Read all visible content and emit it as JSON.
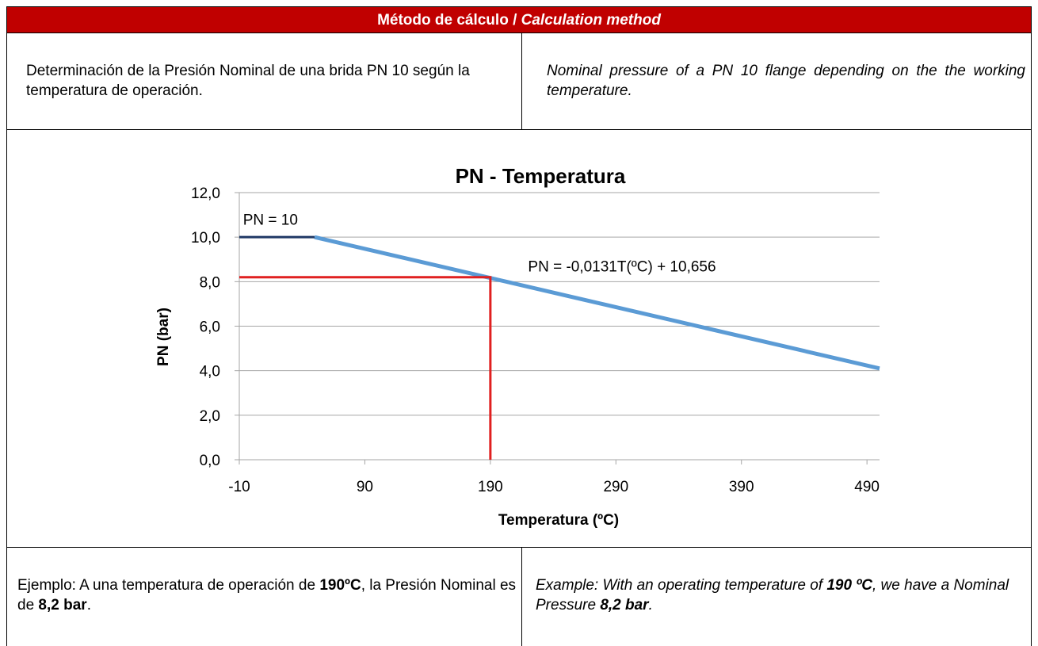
{
  "header": {
    "title": "Método de cálculo / ",
    "title_italic": "Calculation method"
  },
  "description": {
    "es": "Determinación de la Presión Nominal de una brida PN 10 según la temperatura de operación.",
    "en": "Nominal pressure of a PN 10 flange depending on the the working temperature."
  },
  "chart_data": {
    "type": "line",
    "title": "PN - Temperatura",
    "x_label": "Temperatura (ºC)",
    "y_label": "PN (bar)",
    "xlim": [
      -10,
      500
    ],
    "xticks": [
      -10,
      90,
      190,
      290,
      390,
      490
    ],
    "ylim": [
      0,
      12
    ],
    "yticks": [
      {
        "value": 0,
        "label": "0,0"
      },
      {
        "value": 2,
        "label": "2,0"
      },
      {
        "value": 4,
        "label": "4,0"
      },
      {
        "value": 6,
        "label": "6,0"
      },
      {
        "value": 8,
        "label": "8,0"
      },
      {
        "value": 10,
        "label": "10,0"
      },
      {
        "value": 12,
        "label": "12,0"
      }
    ],
    "grid": true,
    "series": [
      {
        "color": "#5b9bd5",
        "x": [
          50,
          500
        ],
        "values": [
          10.0,
          4.1
        ]
      },
      {
        "color": "#1f3864",
        "x": [
          -10,
          50
        ],
        "values": [
          10,
          10
        ]
      },
      {
        "color": "#e02020",
        "x": [
          -10,
          190,
          190
        ],
        "values": [
          8.2,
          8.2,
          0
        ]
      }
    ],
    "annotations": [
      {
        "text": "PN = 10",
        "x": -7,
        "y": 10.8
      },
      {
        "text": "PN = -0,0131T(ºC) + 10,656",
        "x": 220,
        "y": 8.7
      }
    ]
  },
  "example": {
    "es": [
      {
        "text": "Ejemplo: A una temperatura de operación de ",
        "bold": false
      },
      {
        "text": "190ºC",
        "bold": true
      },
      {
        "text": ", la Presión Nominal es de ",
        "bold": false
      },
      {
        "text": "8,2 bar",
        "bold": true
      },
      {
        "text": ".",
        "bold": false
      }
    ],
    "en": [
      {
        "text": "Example: With an operating temperature of ",
        "bold": false
      },
      {
        "text": "190 ºC",
        "bold": true
      },
      {
        "text": ", we have a Nominal Pressure ",
        "bold": false
      },
      {
        "text": "8,2 bar",
        "bold": true
      },
      {
        "text": ".",
        "bold": false
      }
    ]
  }
}
